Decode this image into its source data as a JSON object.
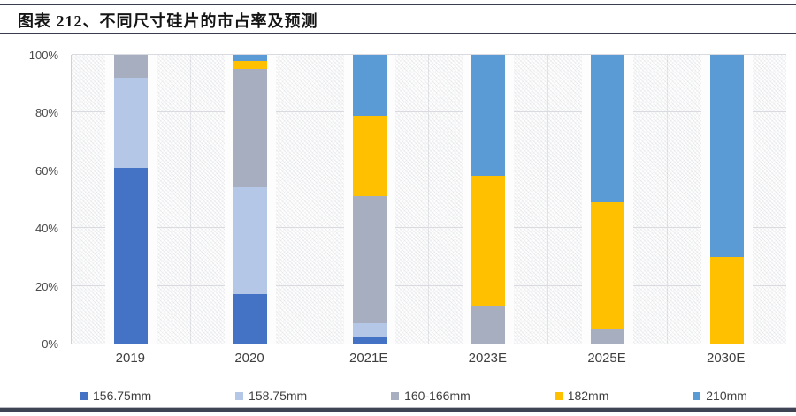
{
  "header": {
    "title": "图表 212、不同尺寸硅片的市占率及预测"
  },
  "chart_data": {
    "type": "bar",
    "stacked": true,
    "title": "图表 212、不同尺寸硅片的市占率及预测",
    "unit": "%",
    "categories": [
      "2019",
      "2020",
      "2021E",
      "2023E",
      "2025E",
      "2030E"
    ],
    "series": [
      {
        "name": "156.75mm",
        "color": "#4472C4",
        "values": [
          61,
          17,
          2,
          0,
          0,
          0
        ]
      },
      {
        "name": "158.75mm",
        "color": "#B4C7E7",
        "values": [
          31,
          37,
          5,
          0,
          0,
          0
        ]
      },
      {
        "name": "160-166mm",
        "color": "#A6AEBF",
        "values": [
          8,
          41,
          44,
          13,
          5,
          0
        ]
      },
      {
        "name": "182mm",
        "color": "#FFC000",
        "values": [
          0,
          3,
          28,
          45,
          44,
          30
        ]
      },
      {
        "name": "210mm",
        "color": "#5B9BD5",
        "values": [
          0,
          2,
          21,
          42,
          51,
          70
        ]
      }
    ],
    "y_axis": {
      "min": 0,
      "max": 100,
      "tick_step": 20,
      "ticks": [
        "0%",
        "20%",
        "40%",
        "60%",
        "80%",
        "100%"
      ]
    },
    "grid": true,
    "legend_position": "bottom",
    "plot_background": "diagonal-hatch"
  }
}
